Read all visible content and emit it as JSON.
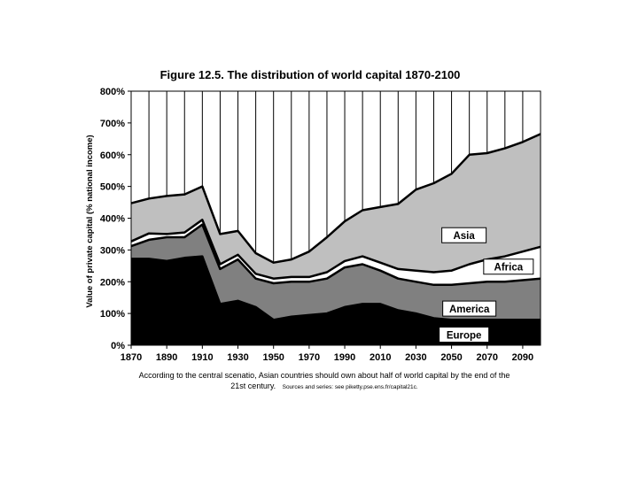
{
  "chart_data": {
    "type": "area",
    "stacked": true,
    "title": "Figure 12.5. The distribution of world capital 1870-2100",
    "ylabel": "Value of private capital (% national income)",
    "xlabel": "",
    "x": [
      1870,
      1880,
      1890,
      1900,
      1910,
      1920,
      1930,
      1940,
      1950,
      1960,
      1970,
      1980,
      1990,
      2000,
      2010,
      2020,
      2030,
      2040,
      2050,
      2060,
      2070,
      2080,
      2090,
      2100
    ],
    "xticks": [
      "1870",
      "1890",
      "1910",
      "1930",
      "1950",
      "1970",
      "1990",
      "2010",
      "2030",
      "2050",
      "2070",
      "2090"
    ],
    "yticks": [
      "0%",
      "100%",
      "200%",
      "300%",
      "400%",
      "500%",
      "600%",
      "700%",
      "800%"
    ],
    "ylim": [
      0,
      800
    ],
    "grid": "vertical",
    "legend": "labels on areas",
    "series": [
      {
        "name": "Europe",
        "color": "#000000",
        "values": [
          272,
          272,
          265,
          275,
          280,
          130,
          140,
          120,
          80,
          90,
          95,
          100,
          120,
          130,
          130,
          110,
          100,
          85,
          80,
          80,
          80,
          80,
          80,
          80
        ]
      },
      {
        "name": "America",
        "color": "#808080",
        "values": [
          40,
          60,
          75,
          65,
          100,
          110,
          130,
          90,
          115,
          110,
          105,
          110,
          125,
          125,
          105,
          100,
          100,
          105,
          110,
          115,
          120,
          120,
          125,
          130
        ]
      },
      {
        "name": "Africa",
        "color": "#ffffff",
        "values": [
          15,
          20,
          10,
          15,
          15,
          15,
          15,
          15,
          15,
          15,
          15,
          20,
          20,
          25,
          25,
          30,
          35,
          40,
          45,
          60,
          70,
          80,
          90,
          100
        ]
      },
      {
        "name": "Asia",
        "color": "#bfbfbf",
        "values": [
          120,
          110,
          120,
          120,
          105,
          95,
          75,
          65,
          50,
          55,
          80,
          110,
          125,
          145,
          175,
          205,
          255,
          280,
          305,
          345,
          335,
          340,
          345,
          355
        ]
      }
    ],
    "series_labels": [
      "Asia",
      "Africa",
      "America",
      "Europe"
    ]
  },
  "caption": {
    "line1": "According to the central scenatio, Asian countries should own about half of world capital by the end of the",
    "line2": "21st century.",
    "sources": "Sources and series: see piketty.pse.ens.fr/capital21c."
  }
}
